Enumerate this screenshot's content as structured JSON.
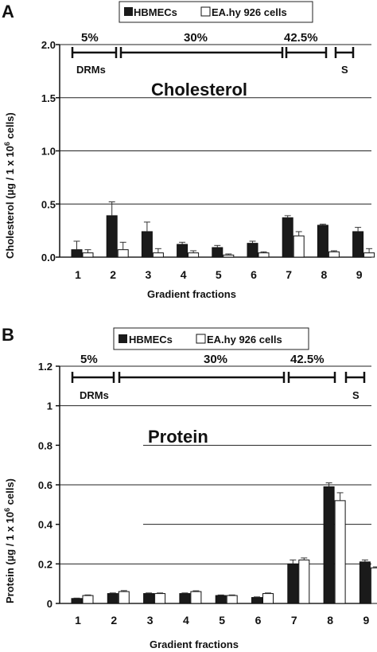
{
  "figure": {
    "panels": [
      {
        "letter": "A",
        "title": "Cholesterol",
        "legend": [
          "HBMECs",
          "EA.hy 926 cells"
        ],
        "ylabel_main": "Cholesterol (µg / 1 x 10",
        "ylabel_sup": "6",
        "ylabel_end": " cells)",
        "xlabel": "Gradient fractions",
        "regions": {
          "r5": "5%",
          "r30": "30%",
          "r425": "42.5%",
          "drms": "DRMs",
          "s": "S"
        }
      },
      {
        "letter": "B",
        "title": "Protein",
        "legend": [
          "HBMECs",
          "EA.hy 926 cells"
        ],
        "ylabel_main": "Protein (µg / 1 x 10",
        "ylabel_sup": "6",
        "ylabel_end": " cells)",
        "xlabel": "Gradient fractions",
        "regions": {
          "r5": "5%",
          "r30": "30%",
          "r425": "42.5%",
          "drms": "DRMs",
          "s": "S"
        }
      }
    ]
  },
  "chart_data": [
    {
      "type": "bar",
      "title": "Cholesterol",
      "xlabel": "Gradient fractions",
      "ylabel": "Cholesterol (µg / 1 x 10^6 cells)",
      "categories": [
        "1",
        "2",
        "3",
        "4",
        "5",
        "6",
        "7",
        "8",
        "9"
      ],
      "ylim": [
        0,
        2.0
      ],
      "yticks": [
        "0.0",
        "0.5",
        "1.0",
        "1.5",
        "2.0"
      ],
      "ytick_values": [
        0,
        0.5,
        1.0,
        1.5,
        2.0
      ],
      "grid": true,
      "legend_position": "top-center",
      "series": [
        {
          "name": "HBMECs",
          "color": "#1a1a1a",
          "values": [
            0.07,
            0.39,
            0.24,
            0.12,
            0.09,
            0.13,
            0.37,
            0.3,
            0.24
          ],
          "errors": [
            0.08,
            0.13,
            0.09,
            0.02,
            0.02,
            0.02,
            0.02,
            0.01,
            0.04
          ]
        },
        {
          "name": "EA.hy 926 cells",
          "color": "#ffffff",
          "values": [
            0.04,
            0.07,
            0.04,
            0.04,
            0.02,
            0.04,
            0.2,
            0.05,
            0.04
          ],
          "errors": [
            0.03,
            0.07,
            0.04,
            0.02,
            0.01,
            0.01,
            0.04,
            0.01,
            0.04
          ]
        }
      ]
    },
    {
      "type": "bar",
      "title": "Protein",
      "xlabel": "Gradient fractions",
      "ylabel": "Protein (µg / 1 x 10^6 cells)",
      "categories": [
        "1",
        "2",
        "3",
        "4",
        "5",
        "6",
        "7",
        "8",
        "9"
      ],
      "ylim": [
        0,
        1.2
      ],
      "yticks": [
        "0",
        "0.2",
        "0.4",
        "0.6",
        "0.8",
        "1",
        "1.2"
      ],
      "ytick_values": [
        0,
        0.2,
        0.4,
        0.6,
        0.8,
        1.0,
        1.2
      ],
      "grid": true,
      "legend_position": "top-center",
      "series": [
        {
          "name": "HBMECs",
          "color": "#1a1a1a",
          "values": [
            0.025,
            0.05,
            0.05,
            0.05,
            0.04,
            0.03,
            0.2,
            0.59,
            0.21
          ],
          "errors": [
            0.002,
            0.003,
            0.003,
            0.003,
            0.003,
            0.003,
            0.02,
            0.02,
            0.01
          ]
        },
        {
          "name": "EA.hy 926 cells",
          "color": "#ffffff",
          "values": [
            0.04,
            0.06,
            0.05,
            0.06,
            0.04,
            0.05,
            0.22,
            0.52,
            0.18
          ],
          "errors": [
            0.003,
            0.005,
            0.003,
            0.004,
            0.003,
            0.003,
            0.01,
            0.04,
            0.005
          ]
        }
      ]
    }
  ]
}
